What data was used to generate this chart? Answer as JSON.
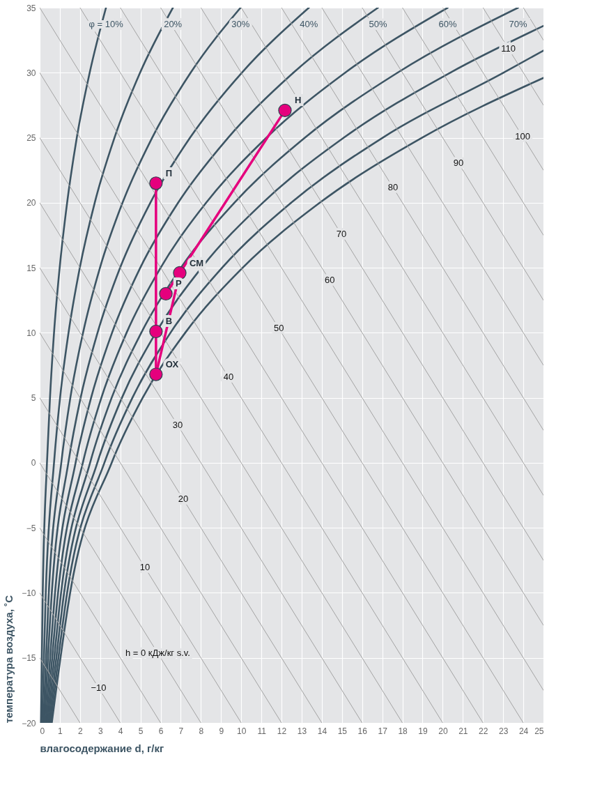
{
  "chart_data": {
    "type": "line",
    "xlabel": "влагосодержание d, г/кг",
    "ylabel": "температура воздуха, ˚C",
    "xlim": [
      0,
      25
    ],
    "ylim": [
      -20,
      35
    ],
    "xticks": [
      0,
      1,
      2,
      3,
      4,
      5,
      6,
      7,
      8,
      9,
      10,
      11,
      12,
      13,
      14,
      15,
      16,
      17,
      18,
      19,
      20,
      21,
      22,
      23,
      24,
      25
    ],
    "yticks": [
      {
        "value": -20,
        "label": "−20"
      },
      {
        "value": -15,
        "label": "−15"
      },
      {
        "value": -10,
        "label": "−10"
      },
      {
        "value": -5,
        "label": "−5"
      },
      0,
      5,
      10,
      15,
      20,
      25,
      30,
      35
    ],
    "grid": true,
    "marker": "none",
    "series": [
      {
        "name": "φ = 10%",
        "color": "#3d5564",
        "x": [
          0.06,
          0.15,
          0.36,
          0.51,
          0.71,
          0.99,
          1.36,
          1.84,
          2.48,
          3.29
        ],
        "values": [
          -20,
          -10,
          0,
          5,
          10,
          15,
          20,
          25,
          30,
          35
        ]
      },
      {
        "name": "20%",
        "color": "#3d5564",
        "x": [
          0.12,
          0.3,
          0.71,
          1.01,
          1.43,
          1.99,
          2.73,
          3.71,
          4.98,
          6.61
        ],
        "values": [
          -20,
          -10,
          0,
          5,
          10,
          15,
          20,
          25,
          30,
          35
        ]
      },
      {
        "name": "30%",
        "color": "#3d5564",
        "x": [
          0.18,
          0.45,
          1.07,
          1.52,
          2.15,
          2.99,
          4.11,
          5.58,
          7.49,
          9.97
        ],
        "values": [
          -20,
          -10,
          0,
          5,
          10,
          15,
          20,
          25,
          30,
          35
        ]
      },
      {
        "name": "40%",
        "color": "#3d5564",
        "x": [
          0.24,
          0.6,
          1.42,
          2.03,
          2.87,
          3.99,
          5.49,
          7.46,
          10.03,
          13.36
        ],
        "values": [
          -20,
          -10,
          0,
          5,
          10,
          15,
          20,
          25,
          30,
          35
        ]
      },
      {
        "name": "50%",
        "color": "#3d5564",
        "x": [
          0.3,
          0.76,
          1.78,
          2.55,
          3.59,
          4.99,
          6.87,
          9.35,
          12.59,
          16.79
        ],
        "values": [
          -20,
          -10,
          0,
          5,
          10,
          15,
          20,
          25,
          30,
          35
        ]
      },
      {
        "name": "60%",
        "color": "#3d5564",
        "x": [
          0.36,
          0.91,
          2.14,
          3.06,
          4.31,
          6.0,
          8.26,
          11.25,
          15.16,
          20.25
        ],
        "values": [
          -20,
          -10,
          0,
          5,
          10,
          15,
          20,
          25,
          30,
          35
        ]
      },
      {
        "name": "70%",
        "color": "#3d5564",
        "x": [
          0.42,
          1.06,
          2.5,
          3.57,
          5.04,
          7.01,
          9.66,
          13.16,
          17.76,
          23.74
        ],
        "values": [
          -20,
          -10,
          0,
          5,
          10,
          15,
          20,
          25,
          30,
          35
        ]
      },
      {
        "color": "#3d5564",
        "x": [
          0.48,
          1.21,
          2.86,
          4.08,
          5.76,
          8.03,
          11.07,
          15.09,
          20.37,
          25
        ],
        "values": [
          -20,
          -10,
          0,
          5,
          10,
          15,
          20,
          25,
          30,
          33.6
        ]
      },
      {
        "color": "#3d5564",
        "x": [
          0.54,
          1.36,
          3.21,
          4.6,
          6.49,
          9.05,
          12.48,
          17.02,
          23.01,
          25
        ],
        "values": [
          -20,
          -10,
          0,
          5,
          10,
          15,
          20,
          25,
          30,
          31.7
        ]
      },
      {
        "color": "#3d5564",
        "x": [
          0.6,
          1.51,
          3.57,
          5.11,
          7.22,
          10.07,
          13.9,
          18.97,
          25
        ],
        "values": [
          -20,
          -10,
          0,
          5,
          10,
          15,
          20,
          25,
          29.6
        ]
      },
      {
        "color": "#a3a3a3",
        "x": [
          0,
          2
        ],
        "values": [
          -15,
          -20
        ]
      },
      {
        "color": "#a3a3a3",
        "x": [
          0,
          4
        ],
        "values": [
          -10,
          -20
        ]
      },
      {
        "color": "#a3a3a3",
        "x": [
          0,
          6
        ],
        "values": [
          -5,
          -20
        ]
      },
      {
        "color": "#a3a3a3",
        "x": [
          0,
          8
        ],
        "values": [
          0,
          -20
        ]
      },
      {
        "color": "#a3a3a3",
        "x": [
          0,
          10
        ],
        "values": [
          5,
          -20
        ]
      },
      {
        "color": "#a3a3a3",
        "x": [
          0,
          12
        ],
        "values": [
          10,
          -20
        ]
      },
      {
        "color": "#a3a3a3",
        "x": [
          0,
          14
        ],
        "values": [
          15,
          -20
        ]
      },
      {
        "color": "#a3a3a3",
        "x": [
          0,
          16
        ],
        "values": [
          20,
          -20
        ]
      },
      {
        "color": "#a3a3a3",
        "x": [
          0,
          18
        ],
        "values": [
          25,
          -20
        ]
      },
      {
        "color": "#a3a3a3",
        "x": [
          0,
          20
        ],
        "values": [
          30,
          -20
        ]
      },
      {
        "color": "#a3a3a3",
        "x": [
          0,
          22
        ],
        "values": [
          35,
          -20
        ]
      },
      {
        "color": "#a3a3a3",
        "x": [
          2,
          24
        ],
        "values": [
          35,
          -20
        ]
      },
      {
        "color": "#a3a3a3",
        "x": [
          4,
          25
        ],
        "values": [
          35,
          -17.5
        ]
      },
      {
        "color": "#a3a3a3",
        "x": [
          6,
          25
        ],
        "values": [
          35,
          -12.5
        ]
      },
      {
        "color": "#a3a3a3",
        "x": [
          8,
          25
        ],
        "values": [
          35,
          -7.5
        ]
      },
      {
        "color": "#a3a3a3",
        "x": [
          10,
          25
        ],
        "values": [
          35,
          -2.5
        ]
      },
      {
        "color": "#a3a3a3",
        "x": [
          12,
          25
        ],
        "values": [
          35,
          2.5
        ]
      },
      {
        "color": "#a3a3a3",
        "x": [
          14,
          25
        ],
        "values": [
          35,
          7.5
        ]
      },
      {
        "color": "#a3a3a3",
        "x": [
          16,
          25
        ],
        "values": [
          35,
          12.5
        ]
      },
      {
        "color": "#a3a3a3",
        "x": [
          18,
          25
        ],
        "values": [
          35,
          17.5
        ]
      },
      {
        "color": "#a3a3a3",
        "x": [
          20,
          25
        ],
        "values": [
          35,
          22.5
        ]
      },
      {
        "color": "#a3a3a3",
        "x": [
          22,
          25
        ],
        "values": [
          35,
          27.5
        ]
      },
      {
        "color": "#a3a3a3",
        "x": [
          24,
          25
        ],
        "values": [
          35,
          32.5
        ]
      },
      {
        "color": "#e5007d",
        "x": [
          12.17,
          6.95,
          6.26
        ],
        "values": [
          27.1,
          14.6,
          13.0
        ]
      },
      {
        "color": "#e5007d",
        "x": [
          6.95,
          5.77
        ],
        "values": [
          14.6,
          6.8
        ]
      },
      {
        "color": "#e5007d",
        "x": [
          5.77,
          5.77,
          5.77
        ],
        "values": [
          6.8,
          10.1,
          21.5
        ]
      },
      {
        "type": "scatter",
        "marker": "circle",
        "color": "#e5007d",
        "x": [
          12.17,
          5.77,
          6.95,
          6.26,
          5.77,
          5.77
        ],
        "values": [
          27.1,
          21.5,
          14.6,
          13.0,
          10.1,
          6.8
        ],
        "value_labels": [
          "Н",
          "П",
          "СМ",
          "Р",
          "В",
          "ОХ"
        ]
      }
    ],
    "annotations": [
      {
        "text": "−10",
        "x": 2.92,
        "y": -17.3
      },
      {
        "text": "h = 0 кДж/кг s.v.",
        "x": 5.86,
        "y": -14.65
      },
      {
        "text": "10",
        "x": 5.22,
        "y": -8.06
      },
      {
        "text": "20",
        "x": 7.12,
        "y": -2.8
      },
      {
        "text": "30",
        "x": 6.85,
        "y": 2.88
      },
      {
        "text": "40",
        "x": 9.37,
        "y": 6.58
      },
      {
        "text": "50",
        "x": 11.87,
        "y": 10.33
      },
      {
        "text": "60",
        "x": 14.39,
        "y": 14.03
      },
      {
        "text": "70",
        "x": 14.97,
        "y": 17.57
      },
      {
        "text": "80",
        "x": 17.53,
        "y": 21.17
      },
      {
        "text": "90",
        "x": 20.78,
        "y": 23.04
      },
      {
        "text": "100",
        "x": 23.97,
        "y": 25.08
      },
      {
        "text": "110",
        "x": 23.26,
        "y": 31.84
      }
    ]
  }
}
